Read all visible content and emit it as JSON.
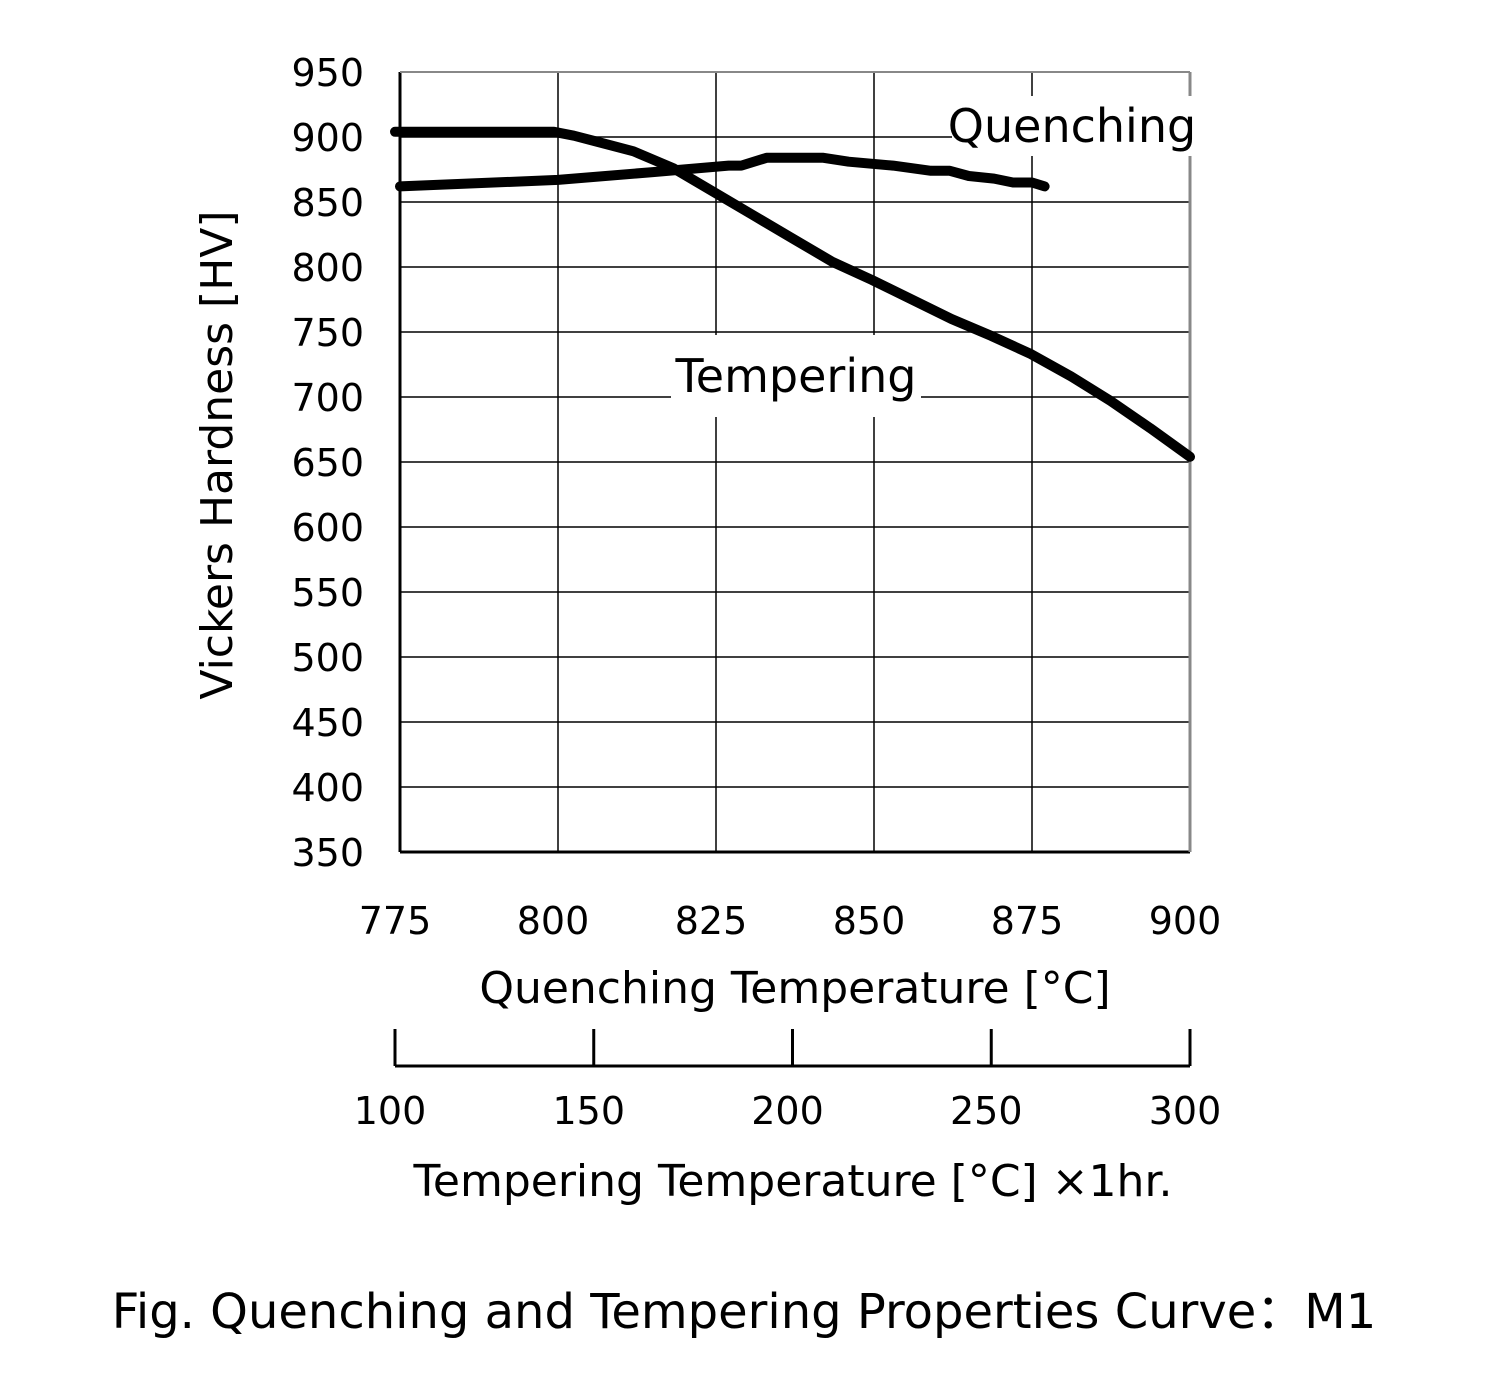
{
  "chart_data": {
    "type": "line",
    "caption": "Fig. Quenching and Tempering Properties Curve：M1",
    "ylabel": "Vickers Hardness [HV]",
    "ylim": [
      350,
      950
    ],
    "yticks": [
      "950",
      "900",
      "850",
      "800",
      "750",
      "700",
      "650",
      "600",
      "550",
      "500",
      "450",
      "400",
      "350"
    ],
    "xaxis_primary": {
      "label": "Quenching Temperature [°C]",
      "range": [
        775,
        900
      ],
      "ticks": [
        "775",
        "800",
        "825",
        "850",
        "875",
        "900"
      ]
    },
    "xaxis_secondary": {
      "label": "Tempering Temperature [°C] ×1hr.",
      "range": [
        100,
        300
      ],
      "ticks": [
        "100",
        "150",
        "200",
        "250",
        "300"
      ]
    },
    "grid": true,
    "series": [
      {
        "name": "Quenching",
        "axis": "primary",
        "points": [
          [
            775,
            862
          ],
          [
            800,
            867
          ],
          [
            815,
            873
          ],
          [
            827,
            878
          ],
          [
            829,
            878
          ],
          [
            833,
            884
          ],
          [
            842,
            884
          ],
          [
            846,
            881
          ],
          [
            853,
            878
          ],
          [
            859,
            874
          ],
          [
            862,
            874
          ],
          [
            865,
            870
          ],
          [
            869,
            868
          ],
          [
            872,
            865
          ],
          [
            875,
            865
          ],
          [
            877,
            862
          ]
        ]
      },
      {
        "name": "Tempering",
        "axis": "secondary",
        "points": [
          [
            100,
            904
          ],
          [
            140,
            904
          ],
          [
            145,
            901
          ],
          [
            150,
            897
          ],
          [
            160,
            889
          ],
          [
            170,
            876
          ],
          [
            180,
            858
          ],
          [
            190,
            840
          ],
          [
            200,
            822
          ],
          [
            210,
            804
          ],
          [
            220,
            790
          ],
          [
            230,
            775
          ],
          [
            240,
            760
          ],
          [
            250,
            747
          ],
          [
            260,
            733
          ],
          [
            270,
            716
          ],
          [
            280,
            697
          ],
          [
            290,
            676
          ],
          [
            300,
            654
          ]
        ]
      }
    ]
  },
  "colors": {
    "line": "#000000",
    "grid": "#000000",
    "background": "#ffffff"
  }
}
